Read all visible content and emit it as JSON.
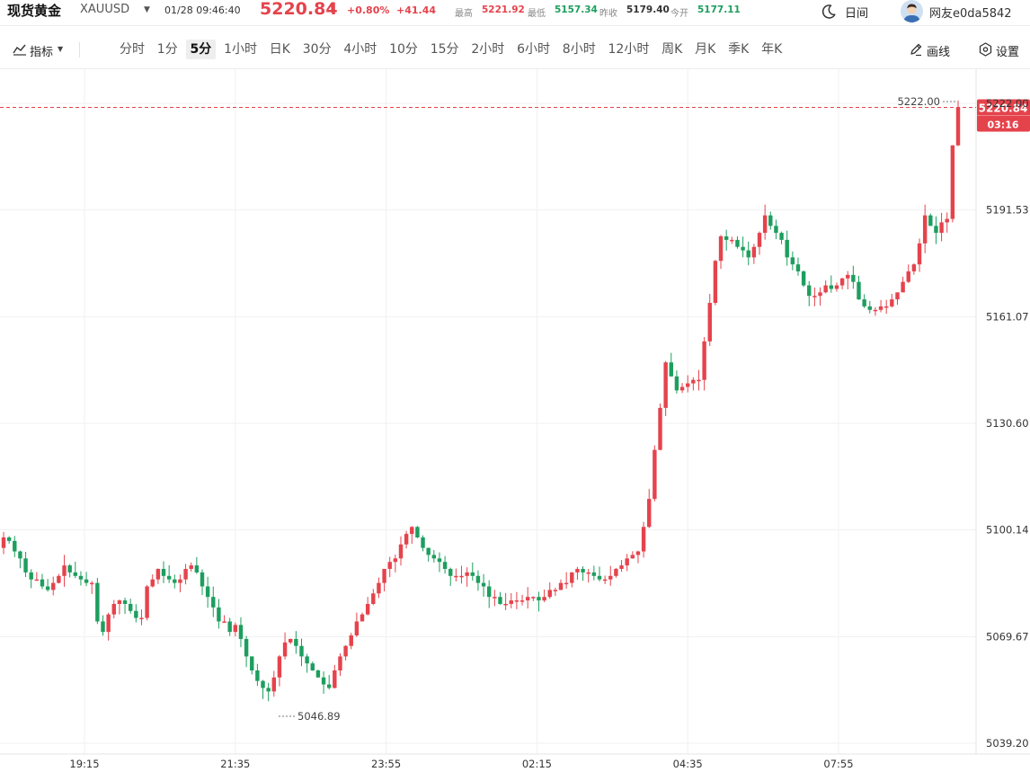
{
  "header": {
    "title": "现货黄金",
    "symbol": "XAUUSD",
    "symbol_caret_icon": "caret-down-icon",
    "datetime": "01/28 09:46:40",
    "price": "5220.84",
    "price_arrow": "↑",
    "change_pct": "+0.80%",
    "change_abs": "+41.44",
    "quotes": [
      {
        "label": "最高",
        "value": "5221.92",
        "color": "#e5434c"
      },
      {
        "label": "最低",
        "value": "5157.34",
        "color": "#1d9e5e"
      },
      {
        "label": "昨收",
        "value": "5179.40",
        "color": "#333333"
      },
      {
        "label": "今开",
        "value": "5177.11",
        "color": "#1d9e5e"
      }
    ],
    "theme_icon": "moon-icon",
    "theme_label": "日间",
    "user_icon": "avatar-icon",
    "user_name": "网友e0da5842"
  },
  "toolbar": {
    "indicator_icon": "indicator-icon",
    "indicator_label": "指标",
    "periods": [
      "分时",
      "1分",
      "5分",
      "1小时",
      "日K",
      "30分",
      "4小时",
      "10分",
      "15分",
      "2小时",
      "6小时",
      "8小时",
      "12小时",
      "周K",
      "月K",
      "季K",
      "年K"
    ],
    "active_period": "5分",
    "draw_icon": "pen-icon",
    "draw_label": "画线",
    "settings_icon": "hexagon-settings-icon",
    "settings_label": "设置"
  },
  "colors": {
    "up": "#e5434c",
    "down": "#1d9e5e",
    "grid": "#f1f1f1",
    "price_line": "#e5434c"
  },
  "chart_data": {
    "type": "candlestick",
    "y_ticks": [
      "5222.00",
      "5191.53",
      "5161.07",
      "5130.60",
      "5100.14",
      "5069.67",
      "5039.20"
    ],
    "x_ticks": [
      "19:15",
      "21:35",
      "23:55",
      "02:15",
      "04:35",
      "07:55"
    ],
    "ylim": [
      5039.2,
      5222.0
    ],
    "current_price": "5220.84",
    "current_countdown": "03:16",
    "high_marker": "5222.00",
    "low_marker": "5046.89",
    "grid": true,
    "closes": [
      5098,
      5097,
      5094,
      5092,
      5088,
      5086,
      5086,
      5084,
      5083,
      5085,
      5087,
      5090,
      5088,
      5087,
      5086,
      5085,
      5085,
      5074,
      5071,
      5076,
      5079,
      5080,
      5079,
      5077,
      5075,
      5075,
      5084,
      5086,
      5089,
      5087,
      5086,
      5085,
      5086,
      5089,
      5090,
      5088,
      5084,
      5081,
      5078,
      5074,
      5074,
      5071,
      5073,
      5069,
      5064,
      5060,
      5057,
      5055,
      5054,
      5058,
      5064,
      5068,
      5069,
      5067,
      5064,
      5062,
      5060,
      5058,
      5056,
      5055,
      5060,
      5064,
      5067,
      5070,
      5074,
      5076,
      5079,
      5082,
      5085,
      5089,
      5091,
      5092,
      5096,
      5099,
      5101,
      5098,
      5095,
      5093,
      5092,
      5091,
      5089,
      5087,
      5087,
      5087,
      5088,
      5087,
      5085,
      5084,
      5081,
      5081,
      5079,
      5079,
      5080,
      5080,
      5080,
      5081,
      5081,
      5080,
      5081,
      5083,
      5083,
      5085,
      5085,
      5088,
      5089,
      5088,
      5088,
      5087,
      5086,
      5086,
      5087,
      5089,
      5090,
      5092,
      5093,
      5094,
      5101,
      5109,
      5123,
      5135,
      5148,
      5144,
      5140,
      5141,
      5142,
      5143,
      5143,
      5154,
      5165,
      5177,
      5184,
      5183,
      5183,
      5181,
      5180,
      5178,
      5181,
      5185,
      5190,
      5187,
      5185,
      5183,
      5178,
      5176,
      5174,
      5170,
      5167,
      5167,
      5168,
      5170,
      5169,
      5170,
      5172,
      5173,
      5171,
      5166,
      5164,
      5163,
      5163,
      5164,
      5164,
      5166,
      5168,
      5171,
      5174,
      5176,
      5182,
      5190,
      5187,
      5185,
      5188,
      5189,
      5210,
      5220.84
    ]
  }
}
